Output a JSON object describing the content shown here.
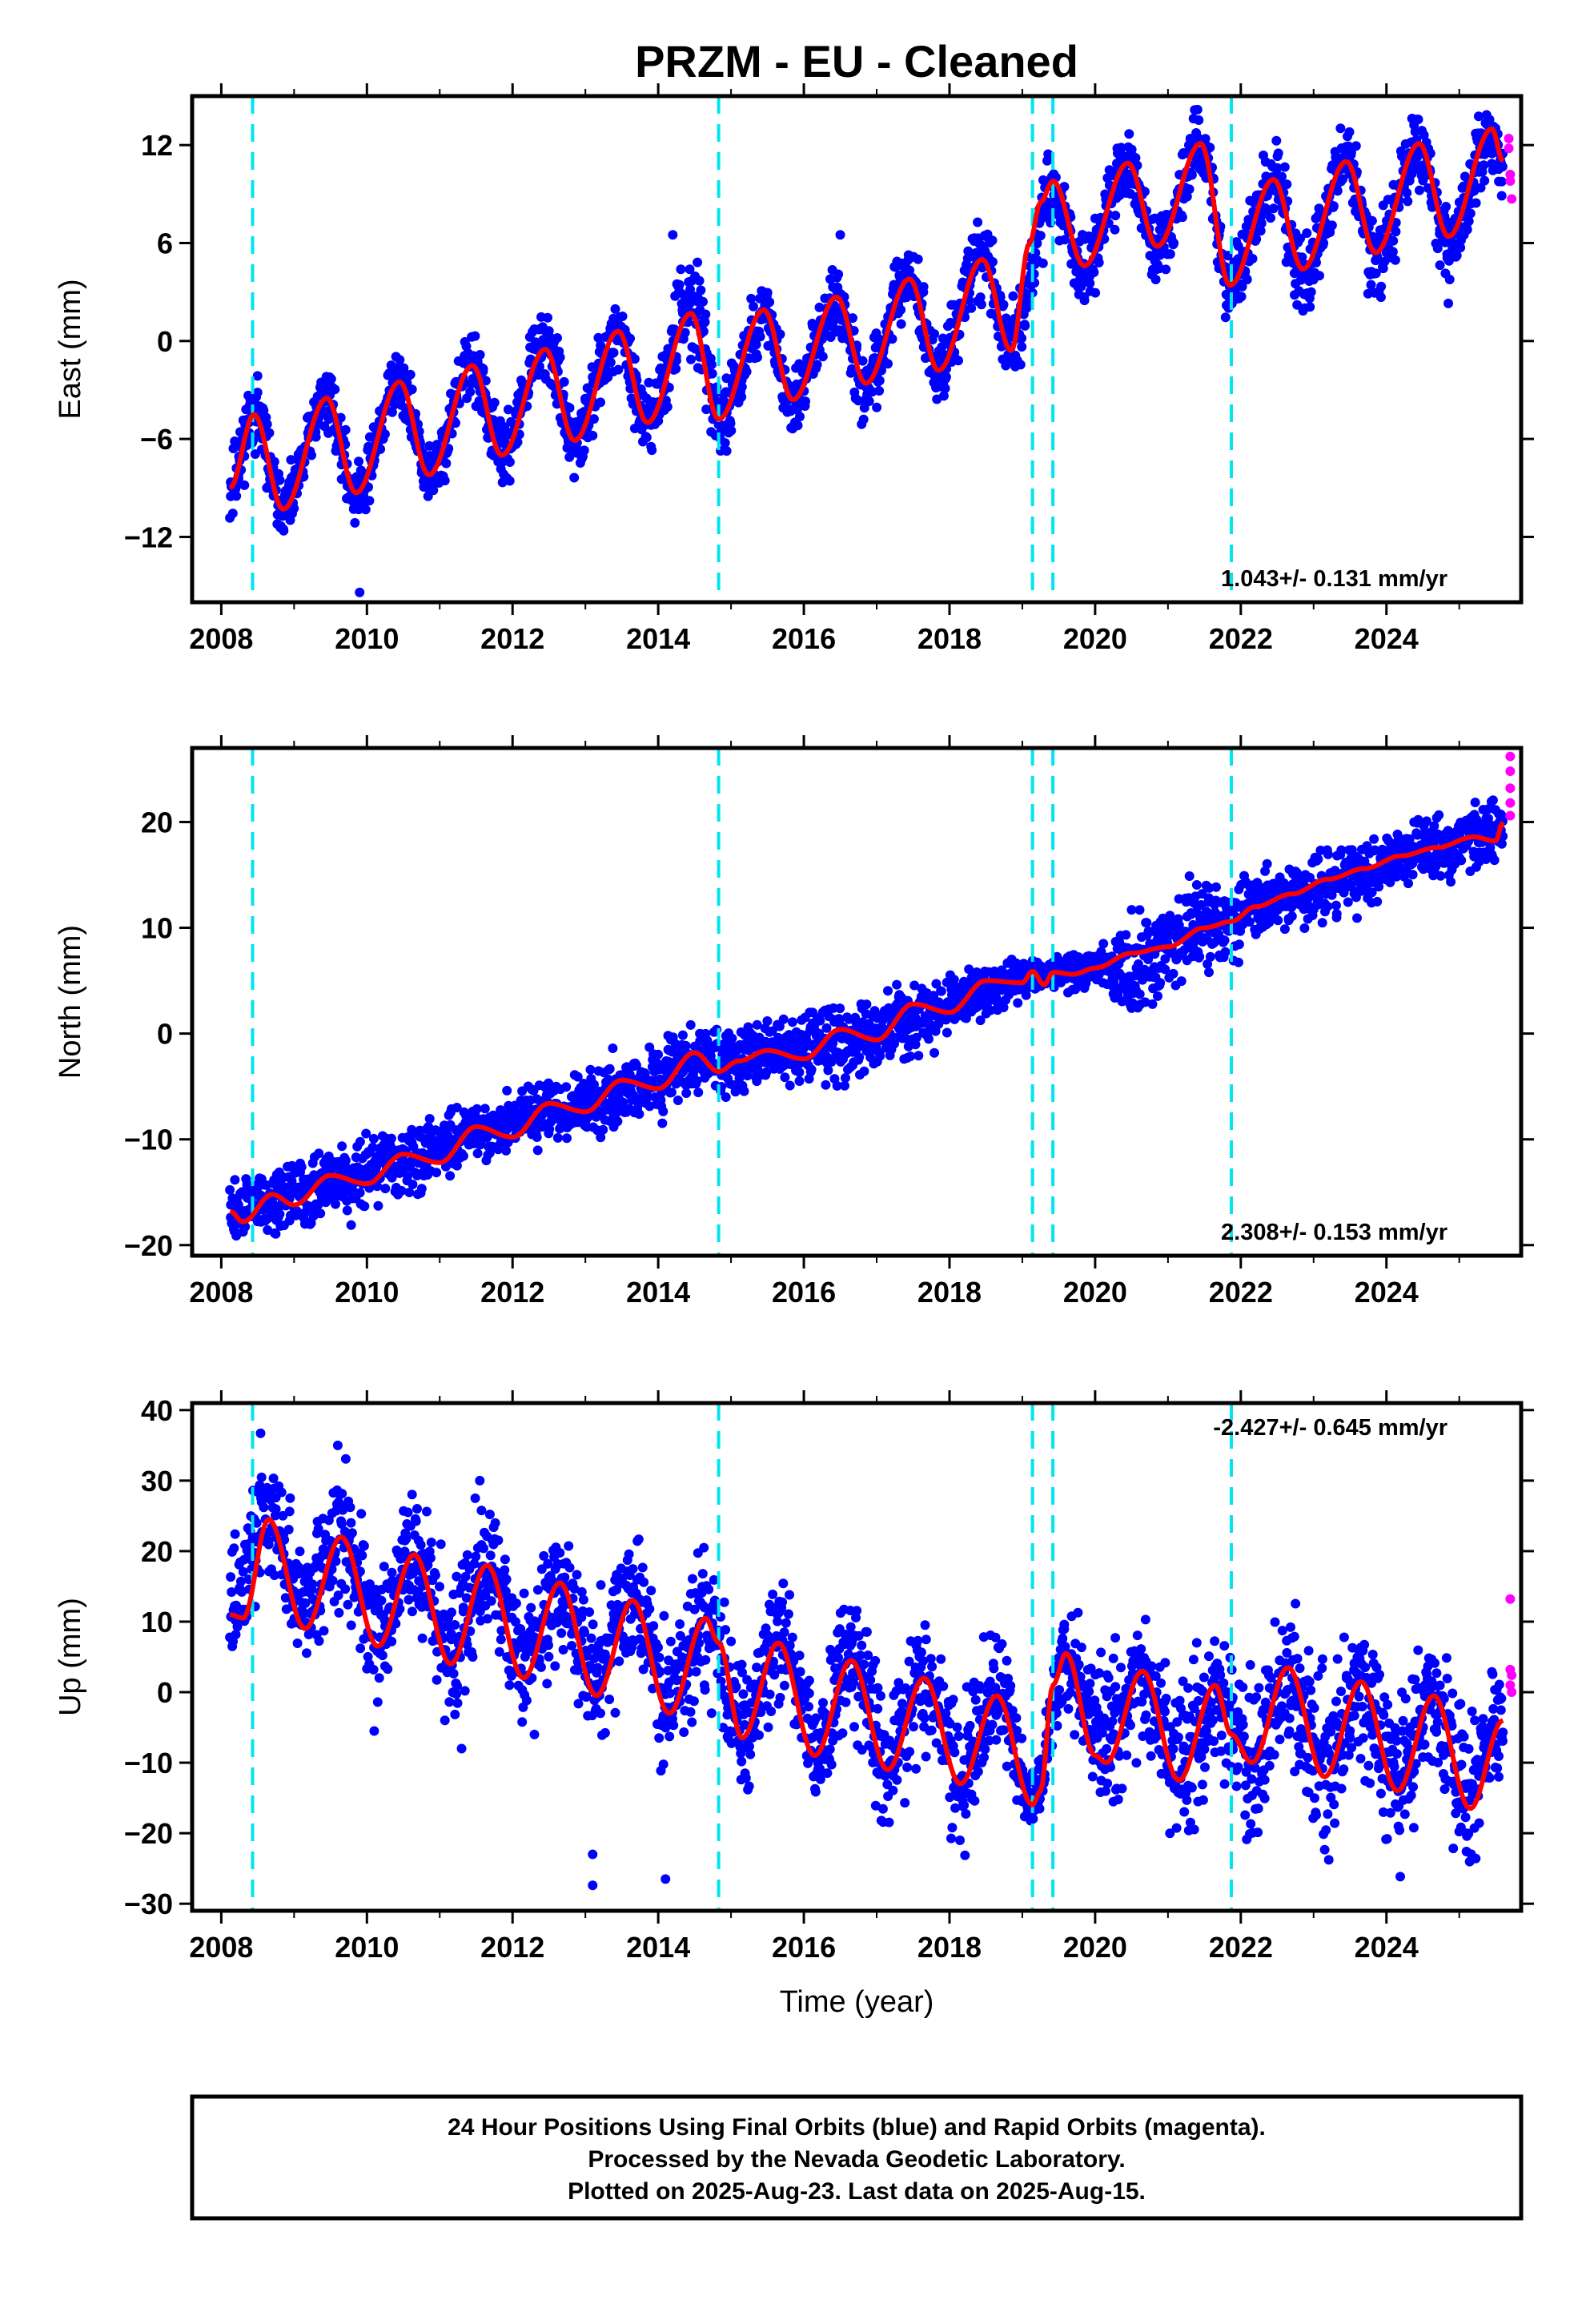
{
  "title": "PRZM  - EU - Cleaned",
  "footer": {
    "lines": [
      "24 Hour Positions Using Final Orbits (blue) and Rapid Orbits (magenta).",
      "Processed by the Nevada Geodetic Laboratory.",
      "Plotted on 2025-Aug-23. Last data on 2025-Aug-15."
    ]
  },
  "colors": {
    "final_orbits": "#0000ff",
    "rapid_orbits": "#ff00ff",
    "model_fit": "#ff0000",
    "step_markers": "#00e5ee"
  },
  "chart_data": [
    {
      "type": "scatter",
      "panel": "east",
      "title": "PRZM  - EU - Cleaned",
      "ylabel": "East (mm)",
      "xlabel": "",
      "xlim": [
        2007.6,
        2025.85
      ],
      "ylim": [
        -16,
        15
      ],
      "xticks": [
        2008,
        2010,
        2012,
        2014,
        2016,
        2018,
        2020,
        2022,
        2024
      ],
      "yticks": [
        -12,
        -6,
        0,
        6,
        12
      ],
      "ytick_labels": [
        "−12",
        "−6",
        "0",
        "6",
        "12"
      ],
      "rate_text": "1.043+/- 0.131 mm/yr",
      "rate_position": "bottom-right",
      "step_epochs": [
        2008.43,
        2014.83,
        2019.14,
        2019.42,
        2021.87
      ],
      "model_fit_curve": {
        "x": [
          2008.12,
          2008.45,
          2008.85,
          2009.45,
          2009.85,
          2010.45,
          2010.85,
          2011.45,
          2011.85,
          2012.45,
          2012.85,
          2013.45,
          2013.85,
          2014.45,
          2014.83,
          2015.45,
          2015.85,
          2016.45,
          2016.85,
          2017.45,
          2017.85,
          2018.45,
          2018.85,
          2019.1,
          2019.25,
          2019.42,
          2019.85,
          2020.45,
          2020.85,
          2021.45,
          2021.85,
          2022.45,
          2022.85,
          2023.45,
          2023.85,
          2024.45,
          2024.85,
          2025.45,
          2025.6
        ],
        "y": [
          -9,
          -4.5,
          -10.3,
          -3.5,
          -9.3,
          -2.5,
          -8.2,
          -1.5,
          -7,
          -0.5,
          -6.1,
          0.6,
          -5,
          1.7,
          -4.8,
          1.9,
          -3.6,
          2.7,
          -2.6,
          3.8,
          -1.8,
          5,
          -0.6,
          6,
          8.5,
          9.8,
          4.6,
          10.9,
          5.8,
          12.1,
          3.4,
          9.9,
          4.4,
          11,
          5.4,
          12.1,
          6.4,
          13,
          11
        ]
      },
      "scatter_envelope": {
        "x": [
          2008.12,
          2008.45,
          2008.85,
          2009.45,
          2009.85,
          2010.45,
          2010.85,
          2011.45,
          2011.85,
          2012.45,
          2012.85,
          2013.45,
          2013.85,
          2014.45,
          2014.83,
          2015.45,
          2015.85,
          2016.45,
          2016.85,
          2017.45,
          2017.85,
          2018.45,
          2018.85,
          2019.42,
          2019.85,
          2020.45,
          2020.85,
          2021.45,
          2021.85,
          2022.45,
          2022.85,
          2023.45,
          2023.85,
          2024.45,
          2024.85,
          2025.45,
          2025.6
        ],
        "min": [
          -12,
          -7,
          -12.4,
          -6,
          -11.5,
          -5,
          -11,
          -4,
          -9.5,
          -3,
          -8.5,
          -2,
          -7.5,
          -1,
          -7.5,
          -1,
          -6.5,
          0,
          -5.5,
          1,
          -4.5,
          2,
          -3,
          6,
          2,
          8,
          3,
          9,
          0.5,
          7,
          1,
          8,
          2,
          9,
          3,
          10,
          8
        ],
        "max": [
          -6,
          -1.5,
          -8,
          -1.2,
          -7,
          0,
          -5.5,
          1,
          -4.5,
          2.5,
          -3.5,
          3,
          -2,
          6.5,
          -2,
          4,
          -1,
          5,
          0,
          6.5,
          1,
          8.5,
          3,
          12,
          7,
          14,
          8,
          14.5,
          6,
          13,
          7,
          14,
          8,
          14.5,
          9,
          15,
          13
        ]
      },
      "outliers": [
        {
          "x": 2009.9,
          "y": -15.4
        },
        {
          "x": 2014.2,
          "y": 6.5
        },
        {
          "x": 2016.5,
          "y": 6.5
        },
        {
          "x": 2024.85,
          "y": 2.3
        }
      ],
      "rapid_points": [
        {
          "x": 2025.68,
          "y": 12.4
        },
        {
          "x": 2025.68,
          "y": 11.8
        },
        {
          "x": 2025.7,
          "y": 10.2
        },
        {
          "x": 2025.7,
          "y": 9.8
        },
        {
          "x": 2025.72,
          "y": 8.7
        }
      ]
    },
    {
      "type": "scatter",
      "panel": "north",
      "ylabel": "North (mm)",
      "xlabel": "",
      "xlim": [
        2007.6,
        2025.85
      ],
      "ylim": [
        -21,
        27
      ],
      "xticks": [
        2008,
        2010,
        2012,
        2014,
        2016,
        2018,
        2020,
        2022,
        2024
      ],
      "yticks": [
        -20,
        -10,
        0,
        10,
        20
      ],
      "ytick_labels": [
        "−20",
        "−10",
        "0",
        "10",
        "20"
      ],
      "rate_text": "2.308+/- 0.153 mm/yr",
      "rate_position": "bottom-right",
      "step_epochs": [
        2008.43,
        2014.83,
        2019.14,
        2019.42,
        2021.87
      ],
      "model_fit_curve": {
        "x": [
          2008.12,
          2008.3,
          2008.7,
          2009.0,
          2009.5,
          2010.0,
          2010.5,
          2011.0,
          2011.5,
          2012.0,
          2012.5,
          2013.0,
          2013.5,
          2014.0,
          2014.5,
          2014.83,
          2015.1,
          2015.5,
          2016.0,
          2016.5,
          2017.0,
          2017.5,
          2018.0,
          2018.5,
          2019.0,
          2019.14,
          2019.3,
          2019.42,
          2019.7,
          2020.0,
          2020.5,
          2021.0,
          2021.5,
          2021.87,
          2022.2,
          2022.7,
          2023.2,
          2023.7,
          2024.2,
          2024.7,
          2025.2,
          2025.5,
          2025.6
        ],
        "y": [
          -16.8,
          -17.8,
          -15.2,
          -16.2,
          -13.4,
          -14.2,
          -11.4,
          -12.2,
          -8.8,
          -9.8,
          -6.6,
          -7.4,
          -4.4,
          -5.2,
          -1.8,
          -3.6,
          -2.6,
          -1.6,
          -2.4,
          0.4,
          -0.6,
          2.8,
          2,
          5,
          4.8,
          5.9,
          4.6,
          5.8,
          5.6,
          6.2,
          7.6,
          8.2,
          10,
          10.6,
          12,
          13.2,
          14.6,
          15.6,
          16.8,
          17.6,
          18.6,
          18.2,
          20
        ]
      },
      "scatter_envelope": {
        "x": [
          2008.12,
          2008.7,
          2009.5,
          2010.5,
          2011.5,
          2012.5,
          2013.5,
          2014.5,
          2015.5,
          2016.5,
          2017.5,
          2018.5,
          2019.14,
          2019.42,
          2020.0,
          2020.5,
          2021.5,
          2022.5,
          2023.5,
          2024.5,
          2025.5,
          2025.6
        ],
        "min": [
          -20.5,
          -19,
          -18,
          -16,
          -13,
          -11,
          -9.5,
          -7,
          -6,
          -5,
          -3,
          1,
          3,
          4,
          4,
          1,
          5.5,
          9,
          11,
          14,
          15,
          16
        ],
        "max": [
          -13.5,
          -12,
          -10,
          -8,
          -6,
          -4,
          -1.5,
          1.5,
          2,
          3.5,
          5.5,
          7,
          7.5,
          8,
          8.5,
          12,
          15,
          16.5,
          18.5,
          21,
          22.5,
          22
        ]
      },
      "outliers": [
        {
          "x": 2020.5,
          "y": 2.4
        },
        {
          "x": 2021.3,
          "y": 9
        },
        {
          "x": 2021.9,
          "y": 6.9
        }
      ],
      "rapid_points": [
        {
          "x": 2025.7,
          "y": 26.2
        },
        {
          "x": 2025.7,
          "y": 24.8
        },
        {
          "x": 2025.7,
          "y": 23.2
        },
        {
          "x": 2025.7,
          "y": 21.8
        },
        {
          "x": 2025.7,
          "y": 20.6
        }
      ]
    },
    {
      "type": "scatter",
      "panel": "up",
      "ylabel": "Up (mm)",
      "xlabel": "Time (year)",
      "xlim": [
        2007.6,
        2025.85
      ],
      "ylim": [
        -31,
        41
      ],
      "xticks": [
        2008,
        2010,
        2012,
        2014,
        2016,
        2018,
        2020,
        2022,
        2024
      ],
      "yticks": [
        -30,
        -20,
        -10,
        0,
        10,
        20,
        30,
        40
      ],
      "ytick_labels": [
        "−30",
        "−20",
        "−10",
        "0",
        "10",
        "20",
        "30",
        "40"
      ],
      "rate_text": "-2.427+/- 0.645 mm/yr",
      "rate_position": "top-right",
      "step_epochs": [
        2008.43,
        2014.83,
        2019.14,
        2019.42,
        2021.87
      ],
      "model_fit_curve": {
        "x": [
          2008.12,
          2008.3,
          2008.65,
          2009.15,
          2009.65,
          2010.15,
          2010.65,
          2011.15,
          2011.65,
          2012.15,
          2012.65,
          2013.15,
          2013.65,
          2014.15,
          2014.65,
          2014.83,
          2015.15,
          2015.65,
          2016.15,
          2016.65,
          2017.15,
          2017.65,
          2018.15,
          2018.65,
          2019.14,
          2019.25,
          2019.42,
          2019.6,
          2020.0,
          2020.15,
          2020.65,
          2021.15,
          2021.65,
          2021.87,
          2022.15,
          2022.65,
          2023.15,
          2023.65,
          2024.15,
          2024.65,
          2025.15,
          2025.6
        ],
        "y": [
          11,
          10.5,
          24.5,
          9,
          22,
          6.5,
          19.5,
          4,
          18,
          2,
          15.5,
          -0.5,
          13,
          -3,
          10.5,
          7,
          -6.5,
          7,
          -9,
          4.5,
          -11,
          2,
          -13,
          -0.5,
          -16,
          -14,
          1,
          5.5,
          -9,
          -10,
          3,
          -12.5,
          1,
          -6,
          -10,
          3.5,
          -12,
          1.5,
          -14,
          -0.5,
          -16.5,
          -4
        ]
      },
      "scatter_envelope": {
        "x": [
          2008.12,
          2008.65,
          2009.15,
          2009.65,
          2010.15,
          2010.65,
          2011.15,
          2011.65,
          2012.15,
          2012.65,
          2013.15,
          2013.65,
          2014.15,
          2014.65,
          2015.15,
          2015.65,
          2016.15,
          2016.65,
          2017.15,
          2017.65,
          2018.15,
          2018.65,
          2019.14,
          2019.6,
          2020.15,
          2020.65,
          2021.15,
          2021.65,
          2022.15,
          2022.65,
          2023.15,
          2023.65,
          2024.15,
          2024.65,
          2025.15,
          2025.6
        ],
        "min": [
          2,
          14,
          3,
          10,
          -2,
          8,
          -4,
          5,
          -6,
          4,
          -9,
          1,
          -12,
          -3,
          -16,
          -4,
          -20,
          -7,
          -22,
          -10,
          -25,
          -12,
          -20,
          -5,
          -22,
          -10,
          -25,
          -12,
          -24,
          -12,
          -26,
          -12,
          -28,
          -14,
          -29,
          -12
        ],
        "max": [
          22,
          39,
          22,
          35,
          20,
          31,
          18,
          30,
          16,
          27,
          14,
          25,
          12,
          23,
          6,
          20,
          4,
          16,
          2,
          13,
          1,
          10,
          -10,
          14,
          6,
          14,
          5,
          12,
          5,
          14,
          4,
          12,
          3,
          10,
          1,
          6
        ]
      },
      "outliers": [
        {
          "x": 2013.1,
          "y": -27.4
        },
        {
          "x": 2013.1,
          "y": -23
        },
        {
          "x": 2014.1,
          "y": -26.5
        },
        {
          "x": 2010.1,
          "y": -5.5
        },
        {
          "x": 2011.3,
          "y": -8
        },
        {
          "x": 2012.3,
          "y": -6
        },
        {
          "x": 2009.6,
          "y": 35
        },
        {
          "x": 2011.55,
          "y": 30
        }
      ],
      "rapid_points": [
        {
          "x": 2025.7,
          "y": 13.2
        },
        {
          "x": 2025.7,
          "y": 3.2
        },
        {
          "x": 2025.72,
          "y": 2.4
        },
        {
          "x": 2025.7,
          "y": 1
        },
        {
          "x": 2025.72,
          "y": 0
        }
      ]
    }
  ]
}
